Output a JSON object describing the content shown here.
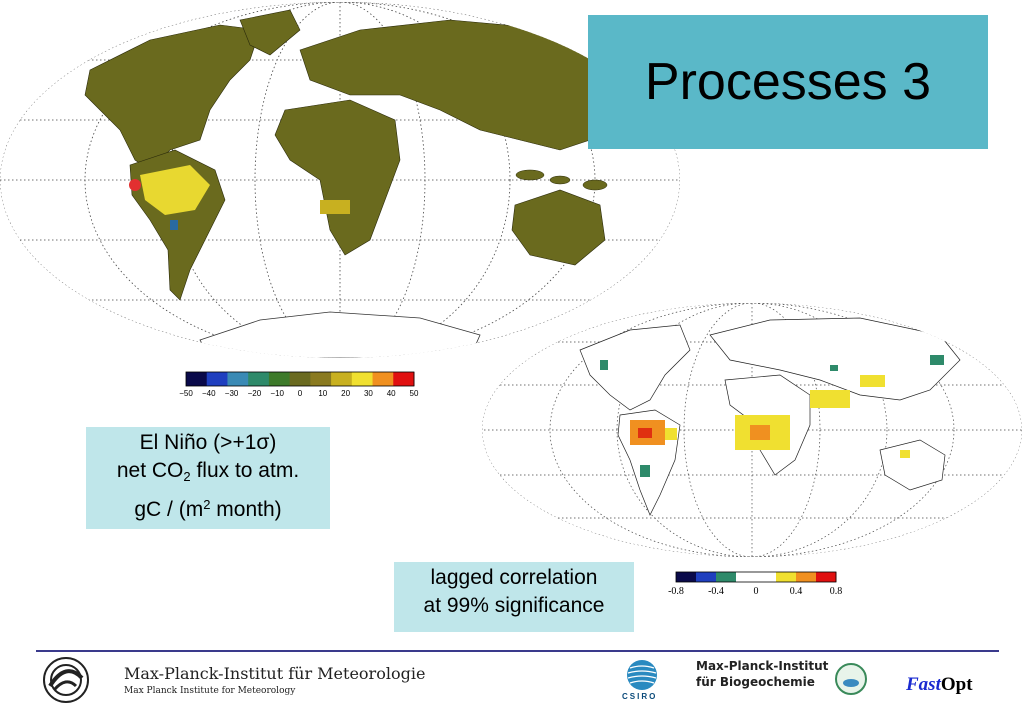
{
  "title": "Processes 3",
  "elnino_label": {
    "line1": "El Niño (>+1σ)",
    "line2_a": "net CO",
    "line2_sub": "2",
    "line2_b": " flux to atm.",
    "line3_a": "gC / (m",
    "line3_sup": "2",
    "line3_b": " month)"
  },
  "correlation_label": {
    "line1": "lagged correlation",
    "line2": "at 99% significance"
  },
  "colorbar_flux": {
    "ticks": [
      "−50",
      "−40",
      "−30",
      "−20",
      "−10",
      "0",
      "10",
      "20",
      "30",
      "40",
      "50"
    ],
    "range": [
      -50,
      50
    ],
    "colors": [
      "#0a0a4a",
      "#1f3fbf",
      "#3a8ab5",
      "#2e8a6a",
      "#3d7a2a",
      "#6a6a20",
      "#8a7a20",
      "#c8b020",
      "#f0e030",
      "#f09020",
      "#e01010"
    ]
  },
  "colorbar_corr": {
    "ticks": [
      "-0.8",
      "-0.4",
      "0",
      "0.4",
      "0.8"
    ],
    "range": [
      -0.8,
      0.8
    ],
    "colors": [
      "#0a0a4a",
      "#1f3fbf",
      "#2e8a6a",
      "#ffffff",
      "#ffffff",
      "#f0e030",
      "#f09020",
      "#e01010"
    ]
  },
  "footer": {
    "mpi_name": "Max-Planck-Institut für Meteorologie",
    "mpi_name_en": "Max Planck Institute for Meteorology",
    "bgc_line1": "Max-Planck-Institut",
    "bgc_line2": "für Biogeochemie",
    "bgc_badge": "MPI-BGC Jena",
    "csiro": "CSIRO",
    "fastopt_fast": "Fast",
    "fastopt_opt": "Opt"
  },
  "colors": {
    "title_bg": "#5ab8c8",
    "label_bg": "#bfe6ea",
    "land_base": "#6a6a1e",
    "footer_line": "#3a3a8c"
  }
}
